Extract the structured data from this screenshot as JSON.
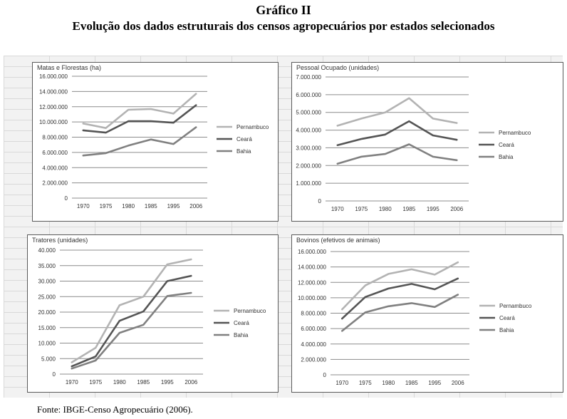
{
  "header": {
    "title_line1": "Gráfico II",
    "title_line2": "Evolução dos dados estruturais dos censos agropecuários por estados selecionados"
  },
  "source": "Fonte: IBGE-Censo Agropecuário (2006).",
  "colors": {
    "Pernambuco": "#b3b3b3",
    "Ceará": "#555555",
    "Bahia": "#808080"
  },
  "chart_data": [
    {
      "type": "line",
      "title": "Matas e Florestas (ha)",
      "x": [
        "1970",
        "1975",
        "1980",
        "1985",
        "1995",
        "2006"
      ],
      "ylim": [
        0,
        16000000
      ],
      "yticks": [
        "0",
        "2.000.000",
        "4.000.000",
        "6.000.000",
        "8.000.000",
        "10.000.000",
        "12.000.000",
        "14.000.000",
        "16.000.000"
      ],
      "legend": "right",
      "grid": true,
      "series": [
        {
          "name": "Pernambuco",
          "values": [
            9800000,
            9200000,
            11600000,
            11700000,
            11100000,
            13700000
          ]
        },
        {
          "name": "Ceará",
          "values": [
            8900000,
            8600000,
            10100000,
            10100000,
            9900000,
            12200000
          ]
        },
        {
          "name": "Bahia",
          "values": [
            5600000,
            5900000,
            6900000,
            7700000,
            7100000,
            9300000
          ]
        }
      ]
    },
    {
      "type": "line",
      "title": "Pessoal Ocupado (unidades)",
      "x": [
        "1970",
        "1975",
        "1980",
        "1985",
        "1995",
        "2006"
      ],
      "ylim": [
        0,
        7000000
      ],
      "yticks": [
        "0",
        "1.000.000",
        "2.000.000",
        "3.000.000",
        "4.000.000",
        "5.000.000",
        "6.000.000",
        "7.000.000"
      ],
      "legend": "right",
      "grid": true,
      "series": [
        {
          "name": "Pernambuco",
          "values": [
            4250000,
            4650000,
            5000000,
            5800000,
            4650000,
            4400000
          ]
        },
        {
          "name": "Ceará",
          "values": [
            3150000,
            3500000,
            3750000,
            4500000,
            3700000,
            3450000
          ]
        },
        {
          "name": "Bahia",
          "values": [
            2100000,
            2500000,
            2650000,
            3200000,
            2500000,
            2300000
          ]
        }
      ]
    },
    {
      "type": "line",
      "title": "Tratores (unidades)",
      "x": [
        "1970",
        "1975",
        "1980",
        "1985",
        "1995",
        "2006"
      ],
      "ylim": [
        0,
        40000
      ],
      "yticks": [
        "0",
        "5.000",
        "10.000",
        "15.000",
        "20.000",
        "25.000",
        "30.000",
        "35.000",
        "40.000"
      ],
      "legend": "right",
      "grid": true,
      "series": [
        {
          "name": "Pernambuco",
          "values": [
            3800,
            8500,
            22200,
            25000,
            35400,
            37000
          ]
        },
        {
          "name": "Ceará",
          "values": [
            2500,
            5700,
            17200,
            20200,
            30000,
            31700
          ]
        },
        {
          "name": "Bahia",
          "values": [
            1800,
            4400,
            13300,
            15900,
            25200,
            26200
          ]
        }
      ]
    },
    {
      "type": "line",
      "title": "Bovinos (efetivos de animais)",
      "x": [
        "1970",
        "1975",
        "1980",
        "1985",
        "1995",
        "2006"
      ],
      "ylim": [
        0,
        16000000
      ],
      "yticks": [
        "0",
        "2.000.000",
        "4.000.000",
        "6.000.000",
        "8.000.000",
        "10.000.000",
        "12.000.000",
        "14.000.000",
        "16.000.000"
      ],
      "legend": "right",
      "grid": true,
      "series": [
        {
          "name": "Pernambuco",
          "values": [
            8500000,
            11600000,
            13100000,
            13700000,
            13000000,
            14600000
          ]
        },
        {
          "name": "Ceará",
          "values": [
            7300000,
            10100000,
            11200000,
            11800000,
            11100000,
            12500000
          ]
        },
        {
          "name": "Bahia",
          "values": [
            5700000,
            8100000,
            8900000,
            9300000,
            8800000,
            10400000
          ]
        }
      ]
    }
  ]
}
